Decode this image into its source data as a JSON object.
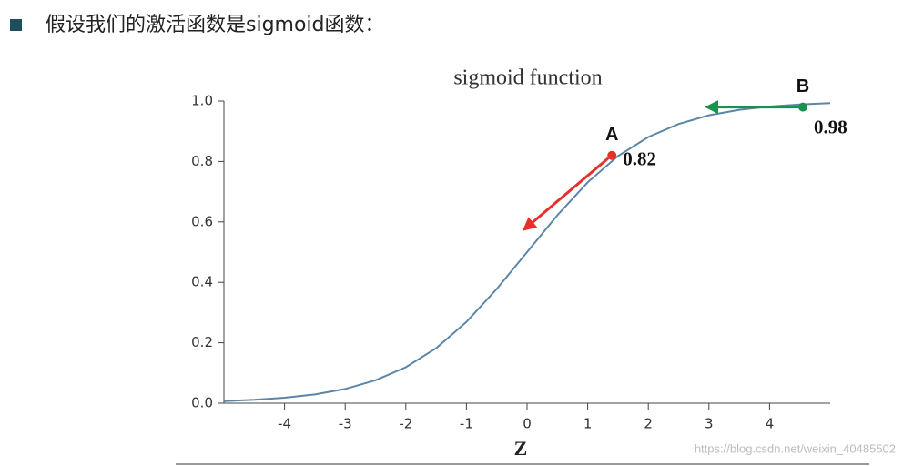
{
  "heading": "假设我们的激活函数是sigmoid函数：",
  "watermark": "https://blog.csdn.net/weixin_40485502",
  "chart_data": {
    "type": "line",
    "title": "sigmoid function",
    "xlabel": "Z",
    "x": [
      -5,
      -4.5,
      -4,
      -3.5,
      -3,
      -2.5,
      -2,
      -1.5,
      -1,
      -0.5,
      0,
      0.5,
      1,
      1.5,
      2,
      2.5,
      3,
      3.5,
      4,
      4.5,
      5
    ],
    "values": [
      0.007,
      0.011,
      0.018,
      0.029,
      0.047,
      0.076,
      0.119,
      0.182,
      0.269,
      0.378,
      0.5,
      0.622,
      0.731,
      0.818,
      0.881,
      0.924,
      0.953,
      0.971,
      0.982,
      0.989,
      0.993
    ],
    "color": "#5b86a8",
    "xlim": [
      -5,
      5
    ],
    "ylim": [
      0,
      1
    ],
    "xticks": [
      -4,
      -3,
      -2,
      -1,
      0,
      1,
      2,
      3,
      4
    ],
    "yticks": [
      {
        "value": 0,
        "label": "0.0"
      },
      0.2,
      0.4,
      0.6,
      0.8,
      {
        "value": 1,
        "label": "1.0"
      }
    ],
    "points": [
      {
        "name": "A",
        "x": 1.4,
        "y": 0.82,
        "color": "#e8302a"
      },
      {
        "name": "B",
        "x": 4.55,
        "y": 0.98,
        "color": "#1a9150"
      }
    ]
  }
}
